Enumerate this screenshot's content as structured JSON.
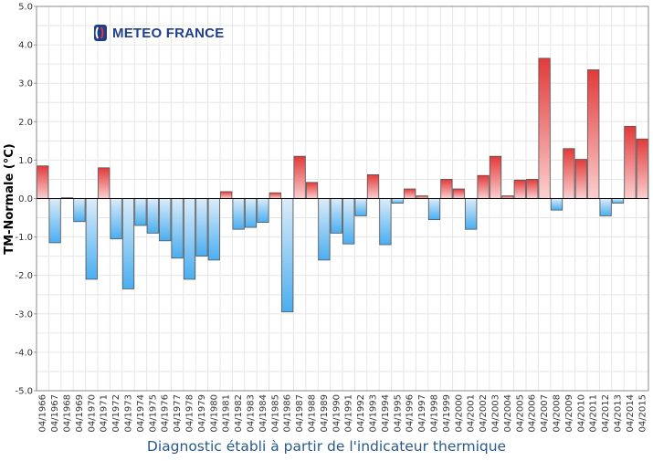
{
  "brand": {
    "name": "METEO FRANCE"
  },
  "caption": "Diagnostic établi à partir de l'indicateur thermique",
  "colors": {
    "positive": "#e23a3a",
    "negative": "#4aaef0",
    "grid": "#e6e6e6",
    "zero": "#000000"
  },
  "chart_data": {
    "type": "bar",
    "title": "",
    "xlabel": "",
    "ylabel": "TM-Normale (°C)",
    "ylim": [
      -5.0,
      5.0
    ],
    "yticks": [
      "5.0",
      "4.0",
      "3.0",
      "2.0",
      "1.0",
      "0.0",
      "-1.0",
      "-2.0",
      "-3.0",
      "-4.0",
      "-5.0"
    ],
    "categories": [
      "04/1966",
      "04/1967",
      "04/1968",
      "04/1969",
      "04/1970",
      "04/1971",
      "04/1972",
      "04/1973",
      "04/1974",
      "04/1975",
      "04/1976",
      "04/1977",
      "04/1978",
      "04/1979",
      "04/1980",
      "04/1981",
      "04/1982",
      "04/1983",
      "04/1984",
      "04/1985",
      "04/1986",
      "04/1987",
      "04/1988",
      "04/1989",
      "04/1990",
      "04/1991",
      "04/1992",
      "04/1993",
      "04/1994",
      "04/1995",
      "04/1996",
      "04/1997",
      "04/1998",
      "04/1999",
      "04/2000",
      "04/2001",
      "04/2002",
      "04/2003",
      "04/2004",
      "04/2005",
      "04/2006",
      "04/2007",
      "04/2008",
      "04/2009",
      "04/2010",
      "04/2011",
      "04/2012",
      "04/2013",
      "04/2014",
      "04/2015"
    ],
    "values": [
      0.85,
      -1.15,
      0.02,
      -0.6,
      -2.1,
      0.8,
      -1.05,
      -2.35,
      -0.7,
      -0.9,
      -1.1,
      -1.55,
      -2.1,
      -1.5,
      -1.6,
      0.18,
      -0.8,
      -0.75,
      -0.62,
      0.15,
      -2.95,
      1.1,
      0.42,
      -1.6,
      -0.9,
      -1.18,
      -0.45,
      0.62,
      -1.2,
      -0.12,
      0.25,
      0.07,
      -0.55,
      0.5,
      0.25,
      -0.8,
      0.6,
      1.1,
      0.07,
      0.48,
      0.5,
      3.65,
      -0.3,
      1.3,
      1.02,
      3.35,
      -0.45,
      -0.12,
      1.88,
      1.55
    ]
  }
}
